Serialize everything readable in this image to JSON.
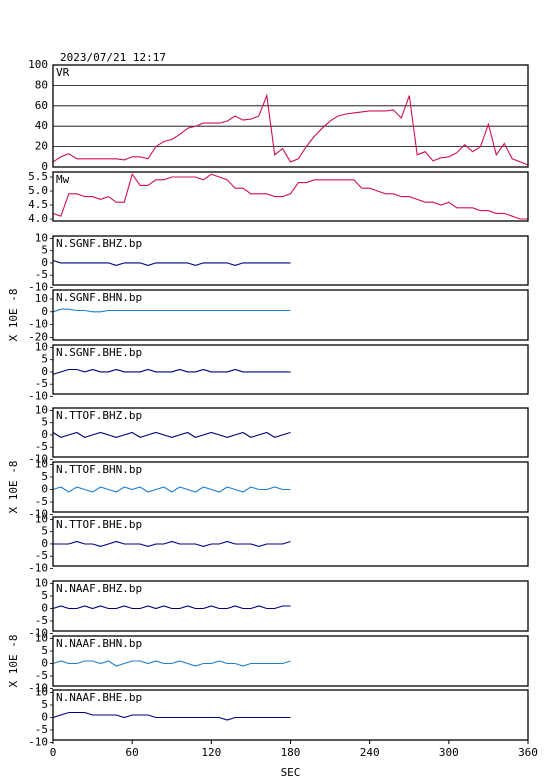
{
  "header": {
    "title": "2023/07/21 12:17"
  },
  "chart_data": [
    {
      "type": "line",
      "title": "VR",
      "color": "#d0104c",
      "grid": true,
      "xlim": [
        0,
        360
      ],
      "ylim": [
        0,
        100
      ],
      "yticks": [
        0,
        20,
        40,
        60,
        80,
        100
      ],
      "x": [
        0,
        6,
        12,
        18,
        24,
        30,
        36,
        42,
        48,
        54,
        60,
        66,
        72,
        78,
        84,
        90,
        96,
        102,
        108,
        114,
        120,
        126,
        132,
        138,
        144,
        150,
        156,
        162,
        168,
        174,
        180,
        186,
        192,
        198,
        204,
        210,
        216,
        222,
        228,
        234,
        240,
        246,
        252,
        258,
        264,
        270,
        276,
        282,
        288,
        294,
        300,
        306,
        312,
        318,
        324,
        330,
        336,
        342,
        348,
        354,
        360
      ],
      "values": [
        5,
        10,
        13,
        8,
        8,
        8,
        8,
        8,
        8,
        7,
        10,
        10,
        8,
        20,
        25,
        27,
        32,
        38,
        40,
        43,
        43,
        43,
        45,
        50,
        46,
        47,
        50,
        70,
        12,
        18,
        5,
        8,
        20,
        30,
        38,
        45,
        50,
        52,
        53,
        54,
        55,
        55,
        55,
        56,
        48,
        70,
        12,
        15,
        6,
        9,
        10,
        14,
        22,
        15,
        20,
        42,
        12,
        23,
        8,
        5,
        2
      ]
    },
    {
      "type": "line",
      "title": "Mw",
      "color": "#d0104c",
      "grid": false,
      "xlim": [
        0,
        360
      ],
      "ylim": [
        3.93,
        5.68
      ],
      "yticks": [
        {
          "value": 4,
          "label": "4.0"
        },
        4.5,
        {
          "value": 5,
          "label": "5.0"
        },
        5.5
      ],
      "x": [
        0,
        6,
        12,
        18,
        24,
        30,
        36,
        42,
        48,
        54,
        60,
        66,
        72,
        78,
        84,
        90,
        96,
        102,
        108,
        114,
        120,
        126,
        132,
        138,
        144,
        150,
        156,
        162,
        168,
        174,
        180,
        186,
        192,
        198,
        204,
        210,
        216,
        222,
        228,
        234,
        240,
        246,
        252,
        258,
        264,
        270,
        276,
        282,
        288,
        294,
        300,
        306,
        312,
        318,
        324,
        330,
        336,
        342,
        348,
        354,
        360
      ],
      "values": [
        4.2,
        4.1,
        4.9,
        4.9,
        4.8,
        4.8,
        4.7,
        4.8,
        4.6,
        4.6,
        5.6,
        5.2,
        5.2,
        5.4,
        5.4,
        5.5,
        5.5,
        5.5,
        5.5,
        5.4,
        5.6,
        5.5,
        5.4,
        5.1,
        5.1,
        4.9,
        4.9,
        4.9,
        4.8,
        4.8,
        4.9,
        5.3,
        5.3,
        5.4,
        5.4,
        5.4,
        5.4,
        5.4,
        5.4,
        5.1,
        5.1,
        5.0,
        4.9,
        4.9,
        4.8,
        4.8,
        4.7,
        4.6,
        4.6,
        4.5,
        4.6,
        4.4,
        4.4,
        4.4,
        4.3,
        4.3,
        4.2,
        4.2,
        4.1,
        4.0,
        4.0
      ]
    },
    {
      "type": "line",
      "title": "N.SGNF.BHZ.bp",
      "color": "#000080",
      "xlim": [
        0,
        360
      ],
      "ylim": [
        -9,
        11
      ],
      "yticks": [
        -10,
        -5,
        0,
        5,
        10
      ],
      "x": [
        0,
        6,
        12,
        18,
        24,
        30,
        36,
        42,
        48,
        54,
        60,
        66,
        72,
        78,
        84,
        90,
        96,
        102,
        108,
        114,
        120,
        126,
        132,
        138,
        144,
        150,
        156,
        162,
        168,
        174,
        180
      ],
      "values": [
        1,
        0,
        0,
        0,
        0,
        0,
        0,
        0,
        -1,
        0,
        0,
        0,
        -1,
        0,
        0,
        0,
        0,
        0,
        -1,
        0,
        0,
        0,
        0,
        -1,
        0,
        0,
        0,
        0,
        0,
        0,
        0
      ]
    },
    {
      "type": "line",
      "title": "N.SGNF.BHN.bp",
      "color": "#1e7fd0",
      "ylabel": "X 10E -8",
      "xlim": [
        0,
        360
      ],
      "ylim": [
        -22,
        17
      ],
      "yticks": [
        -20,
        -10,
        0,
        10
      ],
      "x": [
        0,
        6,
        12,
        18,
        24,
        30,
        36,
        42,
        48,
        54,
        60,
        66,
        72,
        78,
        84,
        90,
        96,
        102,
        108,
        114,
        120,
        126,
        132,
        138,
        144,
        150,
        156,
        162,
        168,
        174,
        180
      ],
      "values": [
        0,
        2,
        2,
        1,
        1,
        0,
        0,
        1,
        1,
        1,
        1,
        1,
        1,
        1,
        1,
        1,
        1,
        1,
        1,
        1,
        1,
        1,
        1,
        1,
        1,
        1,
        1,
        1,
        1,
        1,
        1
      ]
    },
    {
      "type": "line",
      "title": "N.SGNF.BHE.bp",
      "color": "#000080",
      "xlim": [
        0,
        360
      ],
      "ylim": [
        -9,
        11
      ],
      "yticks": [
        -10,
        -5,
        0,
        5,
        10
      ],
      "x": [
        0,
        6,
        12,
        18,
        24,
        30,
        36,
        42,
        48,
        54,
        60,
        66,
        72,
        78,
        84,
        90,
        96,
        102,
        108,
        114,
        120,
        126,
        132,
        138,
        144,
        150,
        156,
        162,
        168,
        174,
        180
      ],
      "values": [
        -1,
        0,
        1,
        1,
        0,
        1,
        0,
        0,
        1,
        0,
        0,
        0,
        1,
        0,
        0,
        0,
        1,
        0,
        0,
        1,
        0,
        0,
        0,
        1,
        0,
        0,
        0,
        0,
        0,
        0,
        0
      ]
    },
    {
      "type": "line",
      "title": "N.TTOF.BHZ.bp",
      "color": "#000080",
      "xlim": [
        0,
        360
      ],
      "ylim": [
        -9,
        11
      ],
      "yticks": [
        -10,
        -5,
        0,
        5,
        10
      ],
      "x": [
        0,
        6,
        12,
        18,
        24,
        30,
        36,
        42,
        48,
        54,
        60,
        66,
        72,
        78,
        84,
        90,
        96,
        102,
        108,
        114,
        120,
        126,
        132,
        138,
        144,
        150,
        156,
        162,
        168,
        174,
        180
      ],
      "values": [
        1,
        -1,
        0,
        1,
        -1,
        0,
        1,
        0,
        -1,
        0,
        1,
        -1,
        0,
        1,
        0,
        -1,
        0,
        1,
        -1,
        0,
        1,
        0,
        -1,
        0,
        1,
        -1,
        0,
        1,
        -1,
        0,
        1
      ]
    },
    {
      "type": "line",
      "title": "N.TTOF.BHN.bp",
      "color": "#1e7fd0",
      "ylabel": "X 10E -8",
      "xlim": [
        0,
        360
      ],
      "ylim": [
        -9,
        11
      ],
      "yticks": [
        -10,
        -5,
        0,
        5,
        10
      ],
      "x": [
        0,
        6,
        12,
        18,
        24,
        30,
        36,
        42,
        48,
        54,
        60,
        66,
        72,
        78,
        84,
        90,
        96,
        102,
        108,
        114,
        120,
        126,
        132,
        138,
        144,
        150,
        156,
        162,
        168,
        174,
        180
      ],
      "values": [
        0,
        1,
        -1,
        1,
        0,
        -1,
        1,
        0,
        -1,
        1,
        0,
        1,
        -1,
        0,
        1,
        -1,
        1,
        0,
        -1,
        1,
        0,
        -1,
        1,
        0,
        -1,
        1,
        0,
        0,
        1,
        0,
        0
      ]
    },
    {
      "type": "line",
      "title": "N.TTOF.BHE.bp",
      "color": "#000080",
      "xlim": [
        0,
        360
      ],
      "ylim": [
        -9,
        11
      ],
      "yticks": [
        -10,
        -5,
        0,
        5,
        10
      ],
      "x": [
        0,
        6,
        12,
        18,
        24,
        30,
        36,
        42,
        48,
        54,
        60,
        66,
        72,
        78,
        84,
        90,
        96,
        102,
        108,
        114,
        120,
        126,
        132,
        138,
        144,
        150,
        156,
        162,
        168,
        174,
        180
      ],
      "values": [
        0,
        0,
        0,
        1,
        0,
        0,
        -1,
        0,
        1,
        0,
        0,
        0,
        -1,
        0,
        0,
        1,
        0,
        0,
        0,
        -1,
        0,
        0,
        1,
        0,
        0,
        0,
        -1,
        0,
        0,
        0,
        1
      ]
    },
    {
      "type": "line",
      "title": "N.NAAF.BHZ.bp",
      "color": "#000080",
      "xlim": [
        0,
        360
      ],
      "ylim": [
        -9,
        11
      ],
      "yticks": [
        -10,
        -5,
        0,
        5,
        10
      ],
      "x": [
        0,
        6,
        12,
        18,
        24,
        30,
        36,
        42,
        48,
        54,
        60,
        66,
        72,
        78,
        84,
        90,
        96,
        102,
        108,
        114,
        120,
        126,
        132,
        138,
        144,
        150,
        156,
        162,
        168,
        174,
        180
      ],
      "values": [
        0,
        1,
        0,
        0,
        1,
        0,
        1,
        0,
        0,
        1,
        0,
        0,
        1,
        0,
        1,
        0,
        0,
        1,
        0,
        0,
        1,
        0,
        0,
        1,
        0,
        0,
        1,
        0,
        0,
        1,
        1
      ]
    },
    {
      "type": "line",
      "title": "N.NAAF.BHN.bp",
      "color": "#1e7fd0",
      "ylabel": "X 10E -8",
      "xlim": [
        0,
        360
      ],
      "ylim": [
        -9,
        11
      ],
      "yticks": [
        -10,
        -5,
        0,
        5,
        10
      ],
      "x": [
        0,
        6,
        12,
        18,
        24,
        30,
        36,
        42,
        48,
        54,
        60,
        66,
        72,
        78,
        84,
        90,
        96,
        102,
        108,
        114,
        120,
        126,
        132,
        138,
        144,
        150,
        156,
        162,
        168,
        174,
        180
      ],
      "values": [
        0,
        1,
        0,
        0,
        1,
        1,
        0,
        1,
        -1,
        0,
        1,
        1,
        0,
        1,
        0,
        0,
        1,
        0,
        -1,
        0,
        0,
        1,
        0,
        0,
        -1,
        0,
        0,
        0,
        0,
        0,
        1
      ]
    },
    {
      "type": "line",
      "title": "N.NAAF.BHE.bp",
      "color": "#000080",
      "xlim": [
        0,
        360
      ],
      "ylim": [
        -9,
        11
      ],
      "yticks": [
        -10,
        -5,
        0,
        5,
        10
      ],
      "x": [
        0,
        6,
        12,
        18,
        24,
        30,
        36,
        42,
        48,
        54,
        60,
        66,
        72,
        78,
        84,
        90,
        96,
        102,
        108,
        114,
        120,
        126,
        132,
        138,
        144,
        150,
        156,
        162,
        168,
        174,
        180
      ],
      "values": [
        0,
        1,
        2,
        2,
        2,
        1,
        1,
        1,
        1,
        0,
        1,
        1,
        1,
        0,
        0,
        0,
        0,
        0,
        0,
        0,
        0,
        0,
        -1,
        0,
        0,
        0,
        0,
        0,
        0,
        0,
        0
      ],
      "xticks": [
        0,
        60,
        120,
        180,
        240,
        300,
        360
      ],
      "xlabel": "SEC"
    }
  ]
}
